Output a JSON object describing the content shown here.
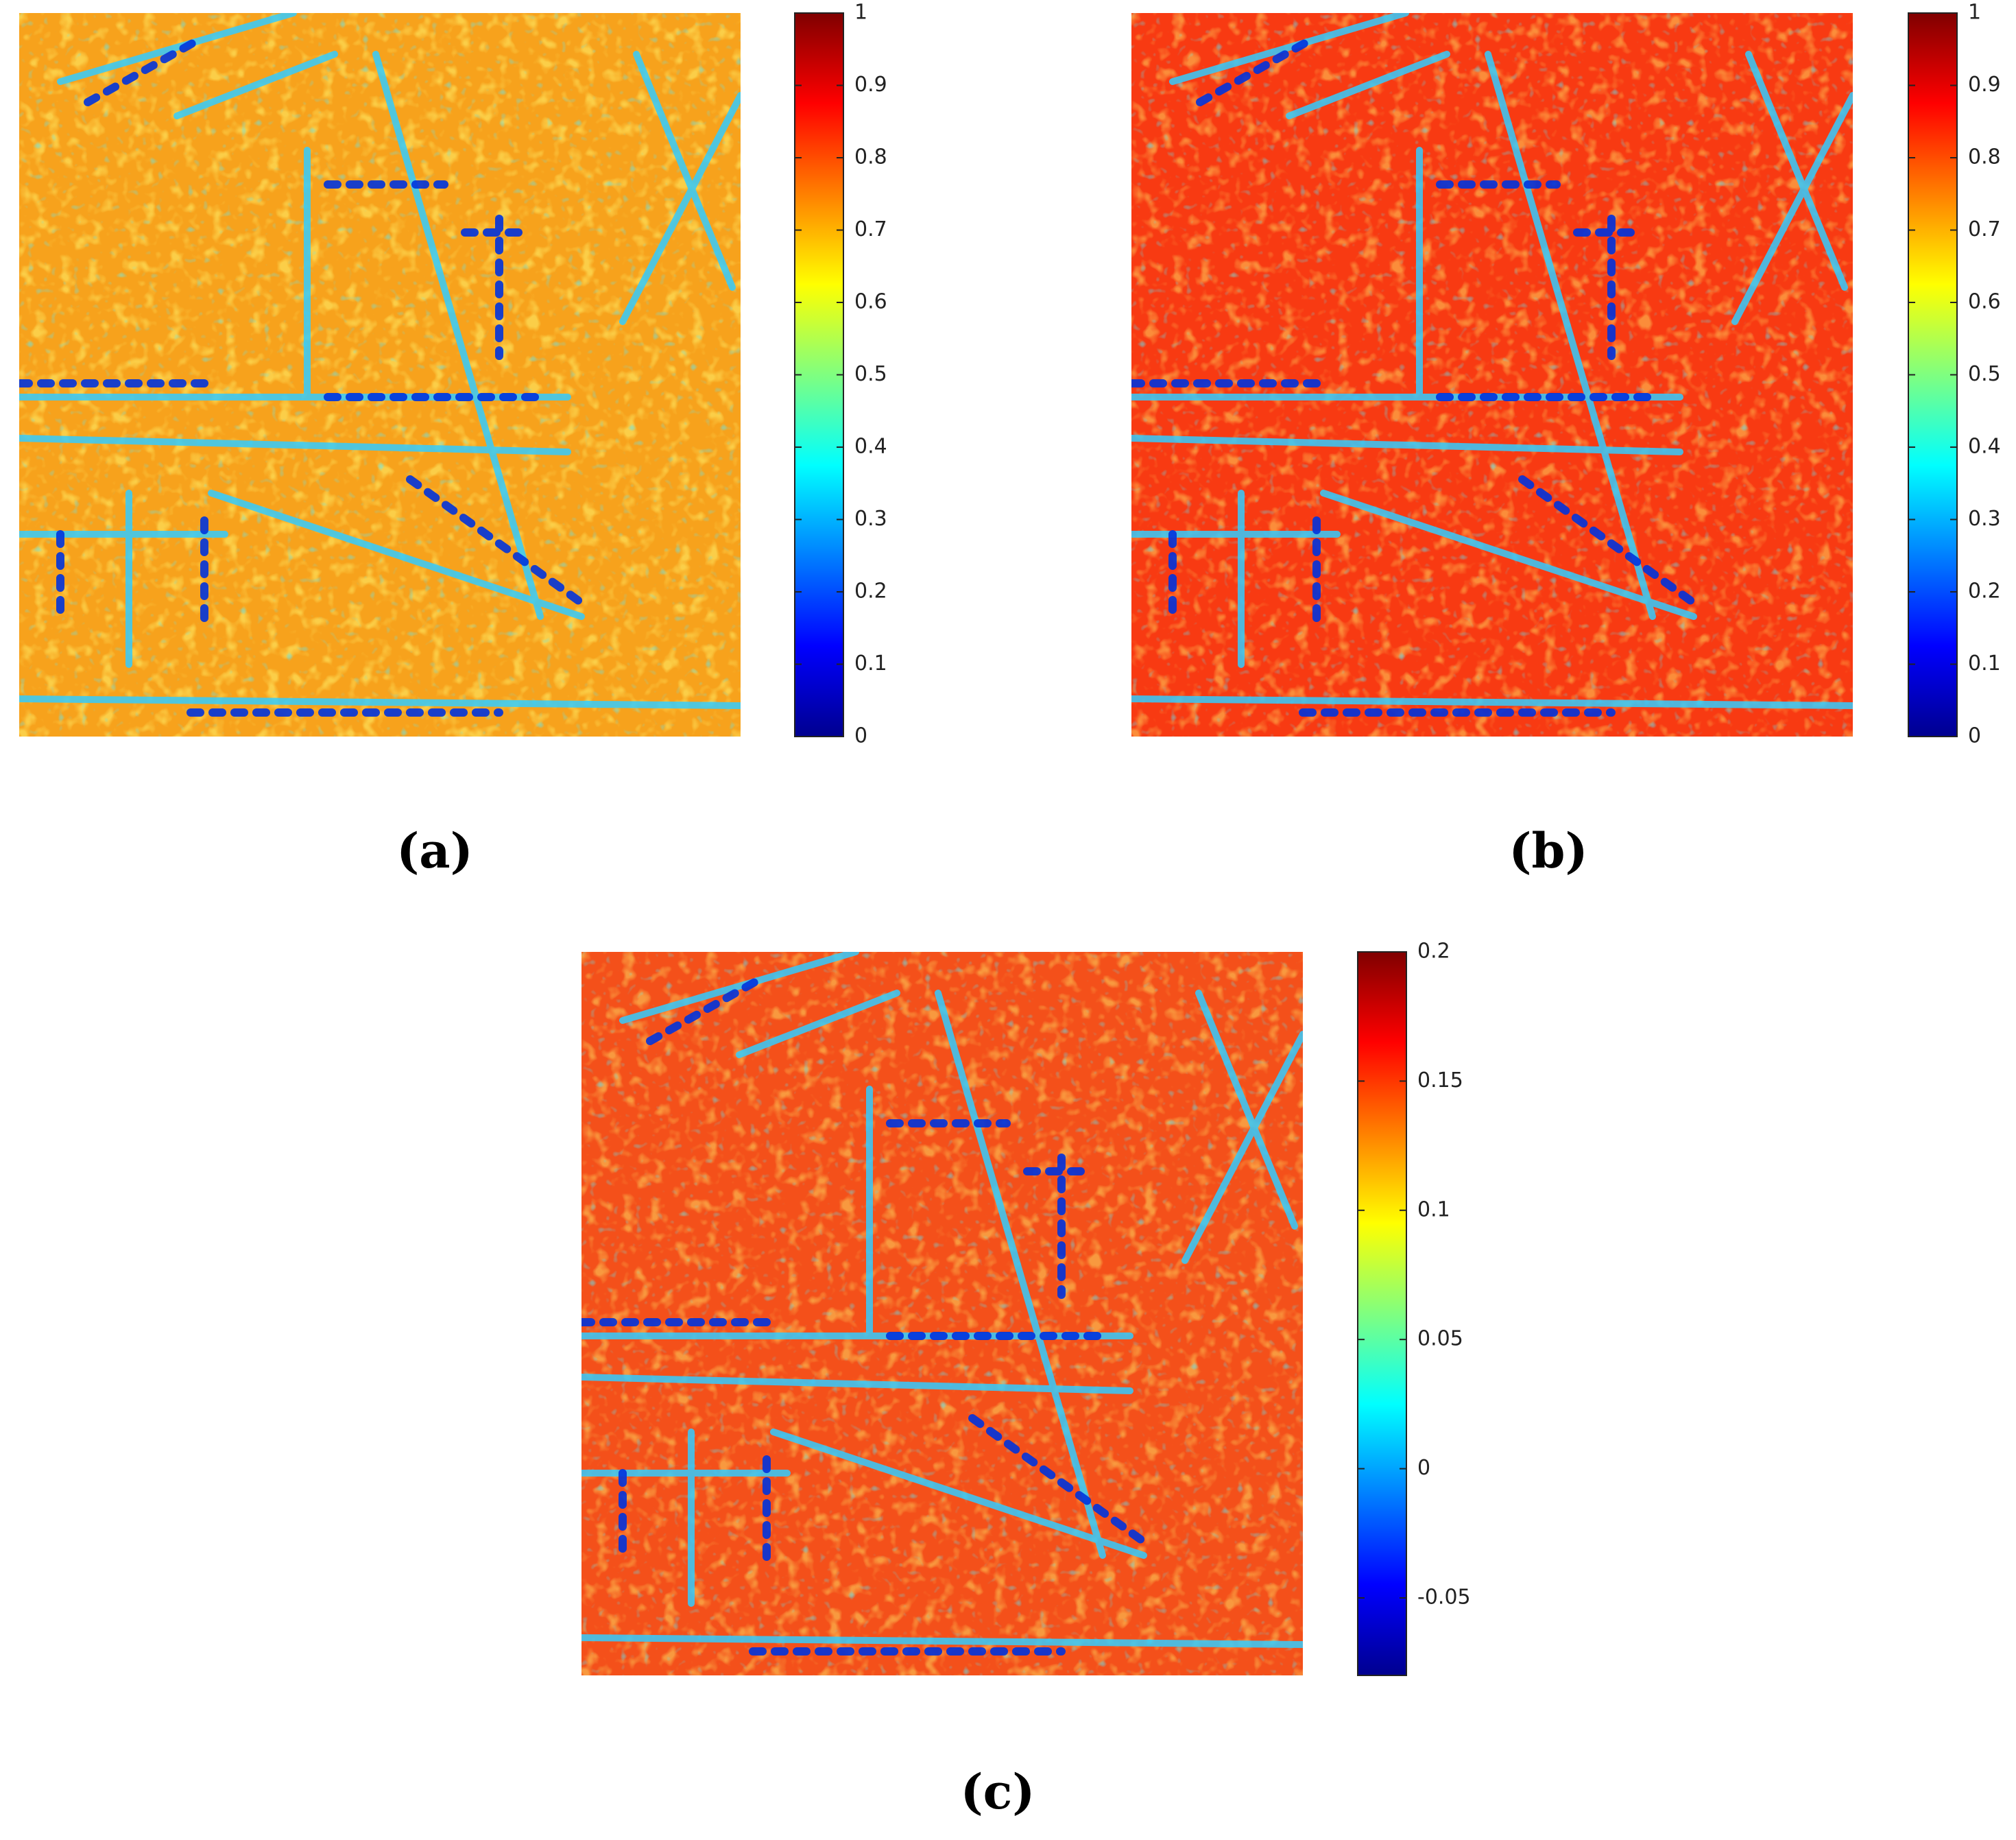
{
  "chart_data": [
    {
      "type": "heatmap",
      "colormap": "jet",
      "caption": "(a)",
      "ylim": [
        0,
        1
      ],
      "yticks": [
        0,
        0.1,
        0.2,
        0.3,
        0.4,
        0.5,
        0.6,
        0.7,
        0.8,
        0.9,
        1
      ]
    },
    {
      "type": "heatmap",
      "colormap": "jet",
      "caption": "(b)",
      "ylim": [
        0,
        1
      ],
      "yticks": [
        0,
        0.1,
        0.2,
        0.3,
        0.4,
        0.5,
        0.6,
        0.7,
        0.8,
        0.9,
        1
      ]
    },
    {
      "type": "heatmap",
      "colormap": "jet",
      "caption": "(c)",
      "ylim": [
        -0.08,
        0.2
      ],
      "yticks": [
        -0.05,
        0,
        0.05,
        0.1,
        0.15,
        0.2
      ]
    }
  ]
}
